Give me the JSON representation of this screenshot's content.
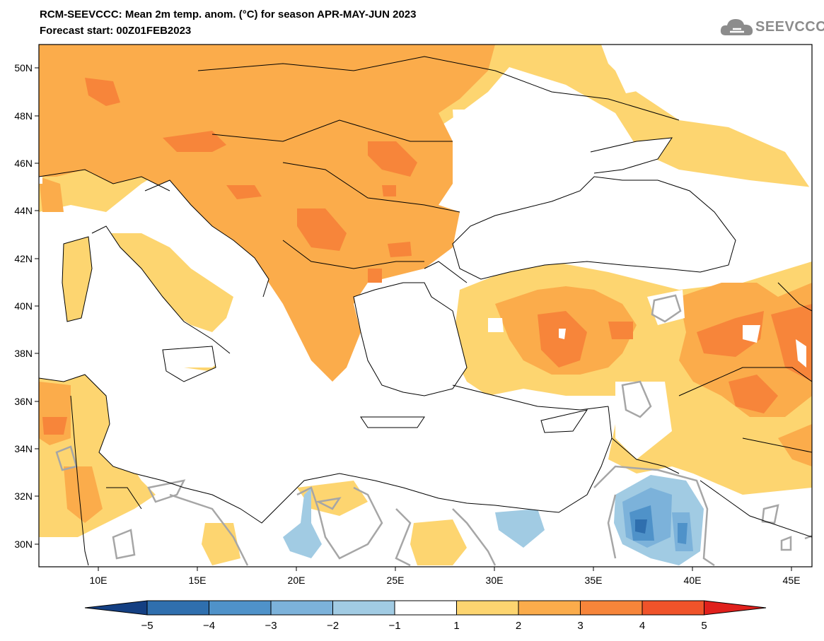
{
  "header": {
    "title_line1": "RCM-SEEVCCC: Mean 2m temp. anom. (°C) for season APR-MAY-JUN 2023",
    "title_line2": "Forecast start: 00Z01FEB2023",
    "logo_text": "SEEVCCC"
  },
  "map": {
    "lon_ticks": [
      "10E",
      "15E",
      "20E",
      "25E",
      "30E",
      "35E",
      "40E",
      "45E"
    ],
    "lat_ticks": [
      "50N",
      "48N",
      "46N",
      "44N",
      "42N",
      "40N",
      "38N",
      "36N",
      "34N",
      "32N",
      "30N"
    ],
    "colors": {
      "anom_1_2": "#fdd570",
      "anom_2_3": "#fbac4b",
      "anom_3_4": "#f7853a",
      "anom_4_5": "#f0532a",
      "anom_gt5": "#e0201c",
      "anom_m2_m1": "#a1cbe3",
      "anom_m3_m2": "#7cb2da",
      "anom_m4_m3": "#4f92c9",
      "anom_m5_m4": "#2f6fae",
      "anom_lt_m5": "#143f82",
      "contour": "#a6a6a6"
    }
  },
  "colorbar": {
    "labels": [
      "−5",
      "−4",
      "−3",
      "−2",
      "−1",
      "1",
      "2",
      "3",
      "4",
      "5"
    ],
    "colors": [
      "#143f82",
      "#2f6fae",
      "#4f92c9",
      "#7cb2da",
      "#a1cbe3",
      "#ffffff",
      "#fdd570",
      "#fbac4b",
      "#f7853a",
      "#f0532a",
      "#e0201c"
    ]
  }
}
